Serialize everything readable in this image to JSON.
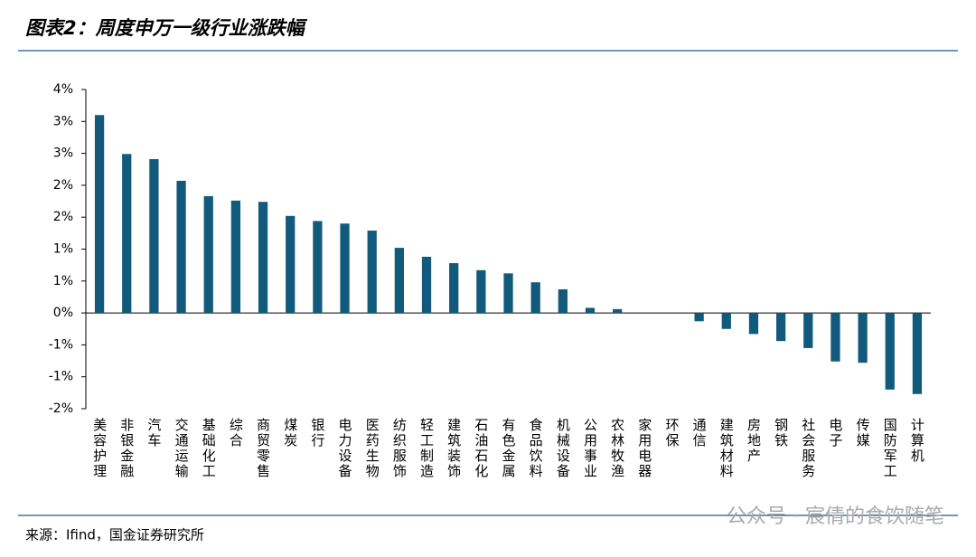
{
  "chart_data": {
    "type": "bar",
    "title": "图表2：周度申万一级行业涨跌幅",
    "source": "来源：Ifind，国金证券研究所",
    "watermark": "公众号 · 宸倩的食饮随笔",
    "color": "#125a7c",
    "categories": [
      "美容护理",
      "非银金融",
      "汽车",
      "交通运输",
      "基础化工",
      "综合",
      "商贸零售",
      "煤炭",
      "银行",
      "电力设备",
      "医药生物",
      "纺织服饰",
      "轻工制造",
      "建筑装饰",
      "石油石化",
      "有色金属",
      "食品饮料",
      "机械设备",
      "公用事业",
      "农林牧渔",
      "家用电器",
      "环保",
      "通信",
      "建筑材料",
      "房地产",
      "钢铁",
      "社会服务",
      "电子",
      "传媒",
      "国防军工",
      "计算机"
    ],
    "values": [
      3.1,
      2.49,
      2.41,
      2.07,
      1.83,
      1.76,
      1.74,
      1.52,
      1.44,
      1.4,
      1.29,
      1.02,
      0.88,
      0.78,
      0.67,
      0.62,
      0.48,
      0.37,
      0.08,
      0.06,
      0.0,
      0.0,
      -0.13,
      -0.25,
      -0.33,
      -0.44,
      -0.55,
      -0.76,
      -0.78,
      -1.2,
      -1.27
    ],
    "ylim": [
      -1.5,
      3.5
    ],
    "yticks": [
      {
        "value": 3.5,
        "label": "4%"
      },
      {
        "value": 3,
        "label": "3%"
      },
      {
        "value": 2.5,
        "label": "3%"
      },
      {
        "value": 2,
        "label": "2%"
      },
      {
        "value": 1.5,
        "label": "2%"
      },
      {
        "value": 1,
        "label": "1%"
      },
      {
        "value": 0.5,
        "label": "1%"
      },
      {
        "value": 0,
        "label": "0%"
      },
      {
        "value": -0.5,
        "label": "-1%"
      },
      {
        "value": -1,
        "label": "-1%"
      },
      {
        "value": -1.5,
        "label": "-2%"
      }
    ]
  }
}
